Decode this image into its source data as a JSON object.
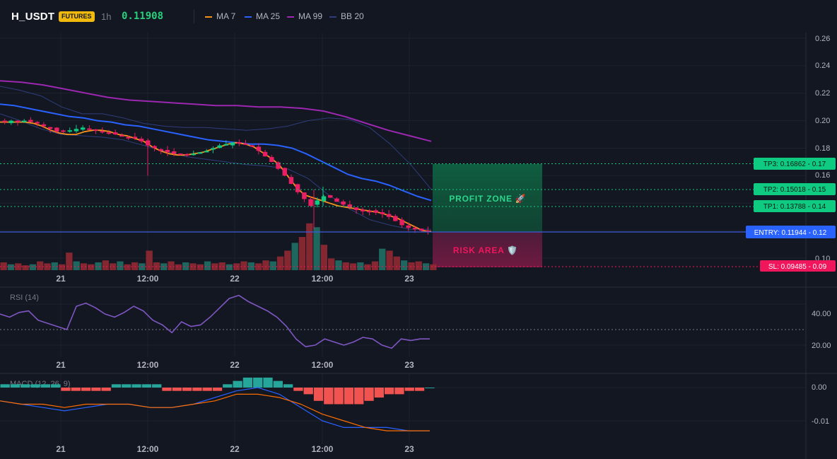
{
  "header": {
    "symbol": "H_USDT",
    "badge": "FUTURES",
    "timeframe": "1h",
    "price": "0.11908",
    "indicators": [
      {
        "label": "MA 7",
        "color": "#f7931a"
      },
      {
        "label": "MA 25",
        "color": "#2962ff"
      },
      {
        "label": "MA 99",
        "color": "#9c27b0"
      },
      {
        "label": "BB 20",
        "color": "#2f3d7a"
      }
    ]
  },
  "colors": {
    "background": "#131722",
    "up": "#26a69a",
    "up_bright": "#0ecb81",
    "down": "#f23645",
    "down_bright": "#e91e63",
    "ma7": "#f7931a",
    "ma25": "#2962ff",
    "ma99": "#9c27b0",
    "bb": "#2f3d7a",
    "entry": "#2962ff",
    "tp": "#0ecb81",
    "sl": "#f0165c",
    "rsi": "#7e57c2",
    "macd": "#2962ff",
    "signal": "#ff6d00"
  },
  "price_axis": {
    "ticks": [
      "0.26",
      "0.24",
      "0.22",
      "0.20",
      "0.18",
      "0.16",
      "0.10"
    ]
  },
  "time_axis": {
    "labels": [
      "21",
      "12:00",
      "22",
      "12:00",
      "23"
    ]
  },
  "levels": {
    "tp3": "TP3: 0.16862 - 0.17",
    "tp2": "TP2: 0.15018 - 0.15",
    "tp1": "TP1: 0.13788 - 0.14",
    "entry": "ENTRY: 0.11944 - 0.12",
    "sl": "SL: 0.09485 - 0.09"
  },
  "zones": {
    "profit": "PROFIT ZONE 🚀",
    "risk": "RISK AREA 🛡️"
  },
  "rsi_pane": {
    "label": "RSI (14)",
    "ticks": [
      "40.00",
      "20.00"
    ]
  },
  "macd_pane": {
    "label": "MACD (12, 26, 9)",
    "ticks": [
      "0.00",
      "-0.01"
    ]
  },
  "chart_data": {
    "type": "candlestick",
    "symbol": "H_USDT",
    "timeframe": "1h",
    "ylim": [
      0.09,
      0.26
    ],
    "price_path": [
      0.199,
      0.2,
      0.199,
      0.2,
      0.199,
      0.198,
      0.196,
      0.194,
      0.192,
      0.192,
      0.193,
      0.194,
      0.195,
      0.194,
      0.193,
      0.192,
      0.191,
      0.19,
      0.189,
      0.188,
      0.187,
      0.185,
      0.182,
      0.18,
      0.178,
      0.177,
      0.176,
      0.176,
      0.175,
      0.176,
      0.177,
      0.178,
      0.18,
      0.182,
      0.183,
      0.184,
      0.184,
      0.183,
      0.181,
      0.178,
      0.174,
      0.17,
      0.165,
      0.16,
      0.154,
      0.148,
      0.143,
      0.138,
      0.142,
      0.145,
      0.144,
      0.141,
      0.139,
      0.137,
      0.135,
      0.134,
      0.134,
      0.133,
      0.132,
      0.13,
      0.127,
      0.124,
      0.122,
      0.121,
      0.12,
      0.1191
    ],
    "ma7": [
      0.199,
      0.199,
      0.199,
      0.199,
      0.198,
      0.196,
      0.193,
      0.191,
      0.19,
      0.19,
      0.192,
      0.193,
      0.193,
      0.192,
      0.19,
      0.189,
      0.187,
      0.185,
      0.181,
      0.178,
      0.176,
      0.175,
      0.175,
      0.176,
      0.177,
      0.179,
      0.181,
      0.183,
      0.184,
      0.183,
      0.181,
      0.177,
      0.173,
      0.168,
      0.16,
      0.152,
      0.146,
      0.144,
      0.142,
      0.14,
      0.138,
      0.137,
      0.136,
      0.135,
      0.134,
      0.133,
      0.131,
      0.129,
      0.126,
      0.123,
      0.12,
      0.1195
    ],
    "ma25": [
      0.212,
      0.211,
      0.209,
      0.207,
      0.205,
      0.203,
      0.202,
      0.2,
      0.199,
      0.197,
      0.196,
      0.194,
      0.192,
      0.19,
      0.188,
      0.186,
      0.185,
      0.184,
      0.183,
      0.183,
      0.182,
      0.18,
      0.176,
      0.171,
      0.166,
      0.161,
      0.158,
      0.156,
      0.153,
      0.149,
      0.145,
      0.142
    ],
    "ma99": [
      0.229,
      0.228,
      0.226,
      0.223,
      0.22,
      0.217,
      0.215,
      0.214,
      0.213,
      0.212,
      0.211,
      0.211,
      0.21,
      0.21,
      0.209,
      0.207,
      0.203,
      0.198,
      0.193,
      0.189,
      0.185
    ],
    "bb_upper": [
      0.225,
      0.222,
      0.218,
      0.21,
      0.205,
      0.205,
      0.202,
      0.198,
      0.196,
      0.195,
      0.195,
      0.194,
      0.193,
      0.194,
      0.196,
      0.2,
      0.202,
      0.201,
      0.195,
      0.183,
      0.168,
      0.15
    ],
    "bb_lower": [
      0.205,
      0.2,
      0.194,
      0.19,
      0.189,
      0.188,
      0.186,
      0.182,
      0.178,
      0.174,
      0.172,
      0.17,
      0.168,
      0.167,
      0.165,
      0.158,
      0.146,
      0.136,
      0.128,
      0.124,
      0.121,
      0.121
    ],
    "volume": [
      8,
      6,
      7,
      5,
      6,
      9,
      7,
      8,
      6,
      18,
      9,
      7,
      6,
      8,
      10,
      7,
      9,
      6,
      8,
      7,
      20,
      8,
      7,
      9,
      6,
      8,
      7,
      6,
      9,
      7,
      8,
      6,
      7,
      9,
      8,
      7,
      10,
      9,
      14,
      20,
      28,
      34,
      48,
      44,
      26,
      12,
      10,
      8,
      7,
      8,
      6,
      9,
      22,
      20,
      14,
      10,
      8,
      9,
      7,
      6
    ],
    "rsi": [
      40,
      38,
      41,
      42,
      36,
      34,
      32,
      30,
      45,
      47,
      44,
      40,
      38,
      41,
      45,
      42,
      36,
      33,
      28,
      35,
      32,
      33,
      38,
      44,
      50,
      52,
      48,
      45,
      42,
      38,
      32,
      24,
      19,
      20,
      24,
      22,
      20,
      22,
      25,
      24,
      20,
      18,
      24,
      23,
      24,
      24
    ],
    "macd_hist": [
      0.001,
      0.001,
      0.001,
      0.001,
      0.001,
      0.001,
      -0.001,
      -0.001,
      -0.001,
      -0.001,
      -0.001,
      0.001,
      0.001,
      0.001,
      0.001,
      0.001,
      -0.001,
      -0.001,
      -0.001,
      -0.001,
      -0.001,
      -0.001,
      0.001,
      0.002,
      0.003,
      0.003,
      0.003,
      0.002,
      0.001,
      -0.001,
      -0.002,
      -0.004,
      -0.005,
      -0.005,
      -0.005,
      -0.005,
      -0.004,
      -0.003,
      -0.002,
      -0.002,
      -0.001,
      -0.001,
      0
    ],
    "macd_line": [
      -0.004,
      -0.005,
      -0.006,
      -0.007,
      -0.006,
      -0.005,
      -0.005,
      -0.006,
      -0.006,
      -0.005,
      -0.003,
      -0.001,
      0,
      -0.002,
      -0.006,
      -0.01,
      -0.012,
      -0.012,
      -0.012,
      -0.013,
      -0.013
    ],
    "signal_line": [
      -0.004,
      -0.005,
      -0.005,
      -0.006,
      -0.005,
      -0.005,
      -0.005,
      -0.006,
      -0.006,
      -0.005,
      -0.004,
      -0.002,
      -0.002,
      -0.003,
      -0.005,
      -0.008,
      -0.01,
      -0.012,
      -0.013,
      -0.013,
      -0.013
    ]
  }
}
